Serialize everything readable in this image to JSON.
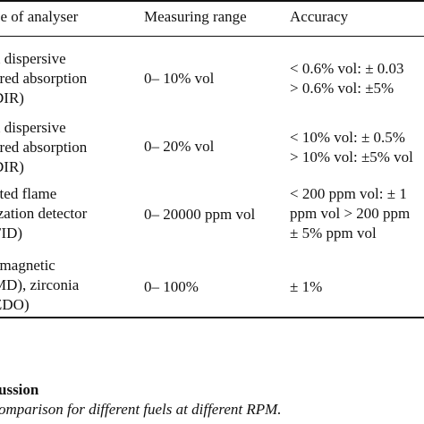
{
  "table": {
    "headers": [
      "pe of analyser",
      "Measuring range",
      "Accuracy"
    ],
    "rows": [
      {
        "type_lines": [
          "n dispersive",
          "ared absorption",
          "DIR)"
        ],
        "range": "0– 10% vol",
        "accuracy_lines": [
          "< 0.6% vol: ± 0.03",
          "> 0.6% vol: ±5%"
        ]
      },
      {
        "type_lines": [
          "n dispersive",
          "ared absorption",
          "DIR)"
        ],
        "range": "0– 20% vol",
        "accuracy_lines": [
          "< 10% vol: ± 0.5%",
          "> 10% vol: ±5% vol"
        ]
      },
      {
        "type_lines": [
          "ated flame",
          "ization detector",
          "FID)"
        ],
        "range": "0– 20000 ppm vol",
        "accuracy_lines": [
          "< 200 ppm vol: ± 1",
          "ppm vol > 200 ppm",
          "± 5% ppm vol"
        ]
      },
      {
        "type_lines": [
          "amagnetic",
          "MD), zirconia",
          "ZDO)"
        ],
        "range": "0– 100%",
        "accuracy_lines": [
          "± 1%"
        ]
      }
    ]
  },
  "section_heading": "ussion",
  "caption": "omparison for different fuels at different RPM."
}
